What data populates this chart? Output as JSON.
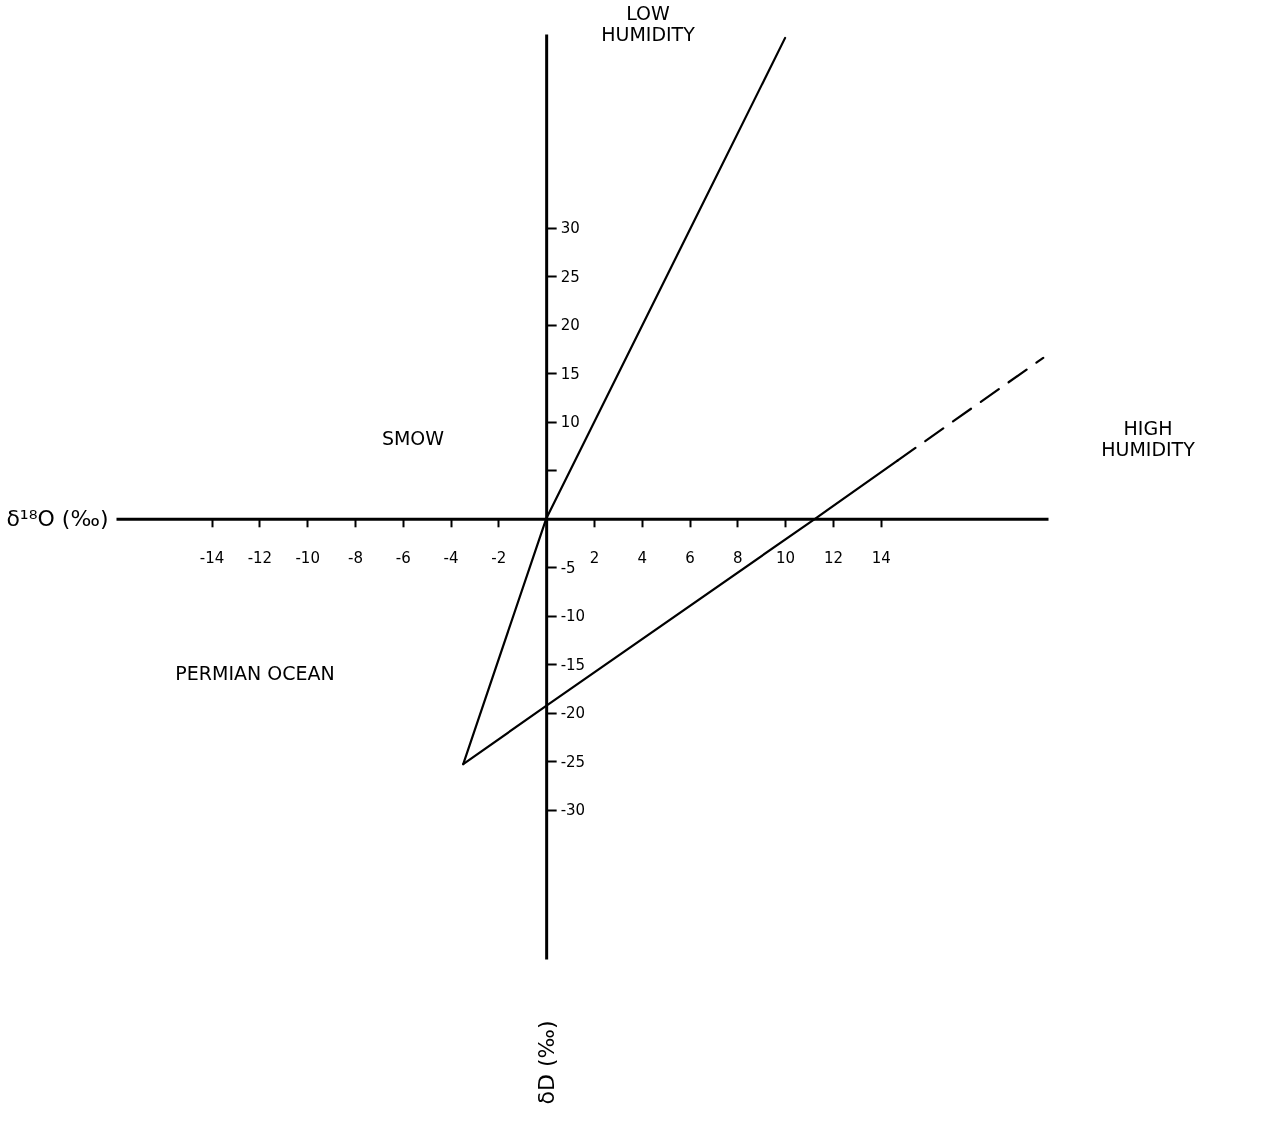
{
  "chart_data": {
    "type": "line",
    "xlabel": "δ¹⁸O (‰)",
    "ylabel": "δD (‰)",
    "xlim": [
      -18,
      21
    ],
    "ylim": [
      -45.4,
      50
    ],
    "xticks": [
      -14,
      -12,
      -10,
      -8,
      -6,
      -4,
      -2,
      2,
      4,
      6,
      8,
      10,
      12,
      14
    ],
    "yticks": [
      -30,
      -25,
      -20,
      -15,
      -10,
      -5,
      {
        "value": 5,
        "label": null
      },
      10,
      15,
      20,
      25,
      30
    ],
    "grid": false,
    "marker": "none",
    "series": [
      {
        "color": "#000000",
        "x": [
          -3.47,
          0,
          10.0
        ],
        "values": [
          -25.3,
          0,
          49.6
        ],
        "line_style": "solid"
      },
      {
        "color": "#000000",
        "x": [
          -3.47,
          0,
          11.25,
          14.7
        ],
        "values": [
          -25.3,
          -19.3,
          0,
          6.0
        ],
        "line_style": "solid"
      },
      {
        "color": "#000000",
        "x": [
          14.7,
          20.8
        ],
        "values": [
          6.0,
          16.6
        ],
        "line_style": "dashed"
      }
    ],
    "annotations": [
      "LOW\nHUMIDITY",
      "HIGH\nHUMIDITY",
      "SMOW",
      "PERMIAN OCEAN"
    ]
  }
}
